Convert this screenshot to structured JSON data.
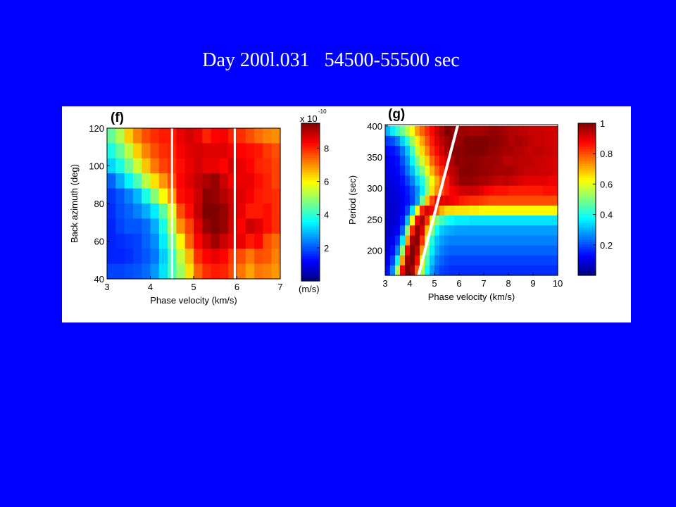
{
  "slide": {
    "title": "Day 200l.031   54500-55500 sec"
  },
  "colors": {
    "background": "#0000ff",
    "panel": "#ffffff",
    "overlay_line": "#ffffff"
  },
  "chart_data": [
    {
      "type": "heatmap",
      "panel_label": "(f)",
      "xlabel": "Phase velocity (km/s)",
      "ylabel": "Back azimuth (deg)",
      "xlim": [
        3,
        7
      ],
      "ylim": [
        40,
        120
      ],
      "x_ticks": [
        "3",
        "4",
        "5",
        "6",
        "7"
      ],
      "y_ticks": [
        "40",
        "60",
        "80",
        "100",
        "120"
      ],
      "colorbar": {
        "multiplier_label": "x 10",
        "exponent_label": "-10",
        "tick_labels": [
          "2",
          "4",
          "6",
          "8"
        ],
        "tick_values": [
          2,
          4,
          6,
          8
        ],
        "range": [
          0,
          9.5
        ],
        "units_label": "(m/s)"
      },
      "x": [
        3.1,
        3.3,
        3.5,
        3.7,
        3.9,
        4.1,
        4.3,
        4.5,
        4.7,
        4.9,
        5.1,
        5.3,
        5.5,
        5.7,
        5.9,
        6.1,
        6.3,
        6.5,
        6.7,
        6.9
      ],
      "y": [
        116,
        108,
        100,
        92,
        84,
        76,
        68,
        60,
        52,
        44
      ],
      "z": [
        [
          4.5,
          5.2,
          6.4,
          7.1,
          7.6,
          7.9,
          8.1,
          8.1,
          8.5,
          8.7,
          8.5,
          8.0,
          8.3,
          8.4,
          8.0,
          7.9,
          7.6,
          7.3,
          7.1,
          7.0
        ],
        [
          3.8,
          4.5,
          5.3,
          6.4,
          7.1,
          7.6,
          7.9,
          8.0,
          8.4,
          8.6,
          8.7,
          8.6,
          8.6,
          8.6,
          8.4,
          8.3,
          8.2,
          8.1,
          7.8,
          7.6
        ],
        [
          3.2,
          3.8,
          4.6,
          5.5,
          6.5,
          7.2,
          7.7,
          7.9,
          8.2,
          8.5,
          8.7,
          8.5,
          8.5,
          8.3,
          8.7,
          8.5,
          8.3,
          8.0,
          7.9,
          7.7
        ],
        [
          2.1,
          2.8,
          3.5,
          4.3,
          5.3,
          6.2,
          6.9,
          7.6,
          8.3,
          8.6,
          8.9,
          9.1,
          9.3,
          8.8,
          8.4,
          8.5,
          8.5,
          8.2,
          8.0,
          7.7
        ],
        [
          1.7,
          2.0,
          2.4,
          2.9,
          3.8,
          4.8,
          5.9,
          6.9,
          8.2,
          8.4,
          8.8,
          9.4,
          9.3,
          9.0,
          8.7,
          8.6,
          8.4,
          8.1,
          8.0,
          7.9
        ],
        [
          1.6,
          1.9,
          2.1,
          2.4,
          2.8,
          3.4,
          4.4,
          5.6,
          7.6,
          8.2,
          8.9,
          9.6,
          9.8,
          9.3,
          8.8,
          8.5,
          8.1,
          8.1,
          8.2,
          7.9
        ],
        [
          1.5,
          1.8,
          2.0,
          2.0,
          2.2,
          2.8,
          3.8,
          5.2,
          7.0,
          7.7,
          8.6,
          9.3,
          9.5,
          9.3,
          8.7,
          8.3,
          8.8,
          8.6,
          8.2,
          7.9
        ],
        [
          1.5,
          1.6,
          1.7,
          1.8,
          2.1,
          2.5,
          3.4,
          4.6,
          6.0,
          7.4,
          8.3,
          8.8,
          9.2,
          8.8,
          8.5,
          8.5,
          8.1,
          8.3,
          7.6,
          7.3
        ],
        [
          1.5,
          1.5,
          1.6,
          1.8,
          2.0,
          2.3,
          3.1,
          4.1,
          5.4,
          6.6,
          7.9,
          8.3,
          8.5,
          8.3,
          7.8,
          7.6,
          7.2,
          7.6,
          7.5,
          7.1
        ],
        [
          1.8,
          1.8,
          1.9,
          2.0,
          2.2,
          2.6,
          3.3,
          4.2,
          5.0,
          6.2,
          7.4,
          7.9,
          8.1,
          8.0,
          7.6,
          7.2,
          6.8,
          7.2,
          7.1,
          6.9
        ]
      ],
      "overlay_lines": [
        {
          "x1": 4.5,
          "y1": 40,
          "x2": 4.5,
          "y2": 120
        },
        {
          "x1": 5.95,
          "y1": 40,
          "x2": 5.95,
          "y2": 120
        }
      ]
    },
    {
      "type": "heatmap",
      "panel_label": "(g)",
      "xlabel": "Phase velocity (km/s)",
      "ylabel": "Period (sec)",
      "xlim": [
        3,
        10
      ],
      "ylim": [
        160,
        402
      ],
      "x_ticks": [
        "3",
        "4",
        "5",
        "6",
        "7",
        "8",
        "9",
        "10"
      ],
      "y_ticks": [
        "200",
        "250",
        "300",
        "350",
        "400"
      ],
      "colorbar": {
        "tick_labels": [
          "0.2",
          "0.4",
          "0.6",
          "0.8",
          "1"
        ],
        "tick_values": [
          0.2,
          0.4,
          0.6,
          0.8,
          1.0
        ],
        "range": [
          0,
          1
        ]
      },
      "x": [
        3.1,
        3.3,
        3.5,
        3.7,
        3.9,
        4.1,
        4.3,
        4.5,
        4.7,
        4.9,
        5.1,
        5.3,
        5.5,
        5.7,
        5.9,
        6.1,
        6.3,
        6.5,
        6.7,
        6.9,
        7.1,
        7.3,
        7.5,
        7.7,
        7.9,
        8.1,
        8.3,
        8.5,
        8.7,
        8.9,
        9.1,
        9.3,
        9.5,
        9.7,
        9.9
      ],
      "y": [
        392,
        376,
        360,
        344,
        328,
        312,
        296,
        280,
        264,
        248,
        232,
        216,
        200,
        184,
        168
      ],
      "z": [
        [
          0.3,
          0.36,
          0.42,
          0.48,
          0.55,
          0.62,
          0.72,
          0.78,
          0.83,
          0.87,
          0.92,
          0.96,
          1.0,
          0.99,
          0.98,
          0.97,
          0.97,
          0.96,
          0.96,
          0.96,
          0.97,
          0.98,
          0.98,
          0.97,
          0.96,
          0.95,
          0.95,
          0.94,
          0.94,
          0.93,
          0.93,
          0.93,
          0.92,
          0.92,
          0.92
        ],
        [
          0.18,
          0.2,
          0.25,
          0.33,
          0.41,
          0.53,
          0.64,
          0.71,
          0.79,
          0.85,
          0.9,
          0.94,
          0.97,
          0.99,
          0.97,
          0.98,
          1.0,
          1.0,
          1.0,
          1.0,
          1.0,
          0.99,
          0.99,
          0.98,
          0.97,
          0.95,
          0.96,
          0.96,
          0.95,
          0.94,
          0.93,
          0.93,
          0.92,
          0.92,
          0.92
        ],
        [
          0.13,
          0.14,
          0.17,
          0.24,
          0.32,
          0.44,
          0.57,
          0.66,
          0.74,
          0.82,
          0.87,
          0.92,
          0.96,
          0.99,
          0.99,
          0.99,
          1.0,
          1.0,
          1.0,
          1.0,
          0.99,
          0.98,
          0.98,
          0.97,
          0.96,
          0.96,
          0.95,
          0.95,
          0.94,
          0.93,
          0.94,
          0.94,
          0.93,
          0.93,
          0.92
        ],
        [
          0.11,
          0.12,
          0.14,
          0.2,
          0.27,
          0.37,
          0.49,
          0.58,
          0.67,
          0.77,
          0.83,
          0.88,
          0.92,
          0.95,
          0.99,
          0.98,
          0.99,
          0.99,
          0.99,
          0.98,
          0.97,
          0.97,
          0.97,
          0.96,
          0.94,
          0.94,
          0.95,
          0.94,
          0.94,
          0.94,
          0.93,
          0.93,
          0.92,
          0.92,
          0.91
        ],
        [
          0.1,
          0.11,
          0.13,
          0.17,
          0.24,
          0.31,
          0.41,
          0.5,
          0.6,
          0.7,
          0.78,
          0.84,
          0.9,
          0.94,
          0.96,
          0.99,
          1.0,
          0.99,
          0.99,
          0.98,
          0.98,
          0.97,
          0.96,
          0.96,
          0.96,
          0.96,
          0.95,
          0.94,
          0.93,
          0.93,
          0.93,
          0.92,
          0.92,
          0.92,
          0.91
        ],
        [
          0.09,
          0.1,
          0.11,
          0.14,
          0.19,
          0.25,
          0.33,
          0.4,
          0.52,
          0.62,
          0.71,
          0.78,
          0.85,
          0.92,
          0.95,
          0.98,
          0.98,
          0.98,
          0.97,
          0.96,
          0.96,
          0.95,
          0.94,
          0.93,
          0.94,
          0.93,
          0.92,
          0.91,
          0.9,
          0.9,
          0.9,
          0.9,
          0.9,
          0.89,
          0.89
        ],
        [
          0.08,
          0.09,
          0.1,
          0.12,
          0.15,
          0.2,
          0.27,
          0.36,
          0.5,
          0.65,
          0.74,
          0.8,
          0.85,
          0.88,
          0.9,
          0.92,
          0.92,
          0.93,
          0.92,
          0.9,
          0.88,
          0.87,
          0.86,
          0.86,
          0.86,
          0.85,
          0.85,
          0.85,
          0.85,
          0.85,
          0.85,
          0.85,
          0.86,
          0.86,
          0.86
        ],
        [
          0.08,
          0.08,
          0.09,
          0.11,
          0.14,
          0.19,
          0.28,
          0.48,
          0.68,
          0.8,
          0.87,
          0.9,
          0.9,
          0.89,
          0.87,
          0.85,
          0.84,
          0.83,
          0.83,
          0.82,
          0.81,
          0.8,
          0.8,
          0.8,
          0.8,
          0.8,
          0.8,
          0.8,
          0.8,
          0.8,
          0.8,
          0.8,
          0.8,
          0.8,
          0.8
        ],
        [
          0.07,
          0.08,
          0.09,
          0.12,
          0.19,
          0.35,
          0.62,
          0.84,
          0.92,
          0.88,
          0.78,
          0.7,
          0.66,
          0.66,
          0.65,
          0.65,
          0.65,
          0.64,
          0.64,
          0.63,
          0.63,
          0.63,
          0.63,
          0.63,
          0.63,
          0.63,
          0.63,
          0.63,
          0.63,
          0.63,
          0.63,
          0.63,
          0.63,
          0.63,
          0.63
        ],
        [
          0.07,
          0.08,
          0.1,
          0.15,
          0.31,
          0.62,
          0.88,
          0.96,
          0.83,
          0.64,
          0.5,
          0.44,
          0.4,
          0.38,
          0.36,
          0.36,
          0.36,
          0.35,
          0.35,
          0.35,
          0.35,
          0.35,
          0.35,
          0.35,
          0.35,
          0.35,
          0.35,
          0.35,
          0.35,
          0.35,
          0.35,
          0.35,
          0.35,
          0.35,
          0.35
        ],
        [
          0.07,
          0.09,
          0.12,
          0.22,
          0.51,
          0.84,
          0.98,
          0.91,
          0.69,
          0.5,
          0.38,
          0.32,
          0.3,
          0.29,
          0.28,
          0.28,
          0.28,
          0.28,
          0.28,
          0.28,
          0.28,
          0.28,
          0.28,
          0.28,
          0.28,
          0.28,
          0.28,
          0.28,
          0.28,
          0.28,
          0.28,
          0.28,
          0.28,
          0.28,
          0.28
        ],
        [
          0.08,
          0.11,
          0.17,
          0.36,
          0.72,
          0.96,
          0.99,
          0.83,
          0.58,
          0.41,
          0.32,
          0.28,
          0.26,
          0.25,
          0.25,
          0.25,
          0.25,
          0.25,
          0.25,
          0.25,
          0.25,
          0.25,
          0.25,
          0.25,
          0.25,
          0.25,
          0.25,
          0.25,
          0.25,
          0.25,
          0.25,
          0.25,
          0.25,
          0.25,
          0.25
        ],
        [
          0.09,
          0.14,
          0.25,
          0.52,
          0.88,
          1.0,
          0.94,
          0.73,
          0.5,
          0.36,
          0.29,
          0.25,
          0.23,
          0.22,
          0.22,
          0.22,
          0.22,
          0.22,
          0.22,
          0.22,
          0.22,
          0.22,
          0.22,
          0.22,
          0.22,
          0.22,
          0.22,
          0.22,
          0.22,
          0.22,
          0.22,
          0.22,
          0.22,
          0.22,
          0.22
        ],
        [
          0.11,
          0.19,
          0.38,
          0.72,
          0.97,
          1.0,
          0.87,
          0.64,
          0.44,
          0.32,
          0.25,
          0.22,
          0.2,
          0.19,
          0.19,
          0.19,
          0.19,
          0.19,
          0.19,
          0.19,
          0.19,
          0.19,
          0.19,
          0.19,
          0.19,
          0.19,
          0.19,
          0.19,
          0.19,
          0.19,
          0.19,
          0.19,
          0.19,
          0.19,
          0.19
        ],
        [
          0.14,
          0.26,
          0.55,
          0.88,
          1.0,
          0.96,
          0.78,
          0.55,
          0.38,
          0.28,
          0.22,
          0.19,
          0.18,
          0.17,
          0.17,
          0.17,
          0.17,
          0.17,
          0.17,
          0.17,
          0.17,
          0.17,
          0.17,
          0.17,
          0.17,
          0.17,
          0.17,
          0.17,
          0.17,
          0.17,
          0.17,
          0.17,
          0.17,
          0.17,
          0.17
        ]
      ],
      "overlay_lines": [
        {
          "x1": 4.35,
          "y1": 160,
          "x2": 5.95,
          "y2": 402
        }
      ]
    }
  ]
}
